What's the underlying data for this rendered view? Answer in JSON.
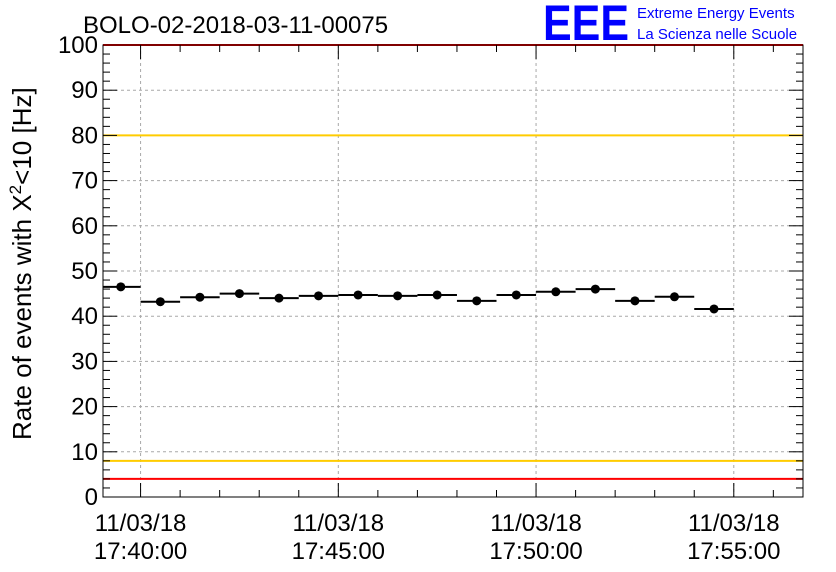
{
  "chart_data": {
    "type": "scatter",
    "title": "BOLO-02-2018-03-11-00075",
    "ylabel_main": "Rate of events with X",
    "ylabel_sup": "2",
    "ylabel_tail": "<10 [Hz]",
    "ylim": [
      0,
      100
    ],
    "y_ticks": [
      "0",
      "10",
      "20",
      "30",
      "40",
      "50",
      "60",
      "70",
      "80",
      "90",
      "100"
    ],
    "x_range_minutes": [
      -0.95,
      16.75
    ],
    "x_ticks": [
      {
        "minute": 0,
        "date": "11/03/18",
        "time": "17:40:00"
      },
      {
        "minute": 5,
        "date": "11/03/18",
        "time": "17:45:00"
      },
      {
        "minute": 10,
        "date": "11/03/18",
        "time": "17:50:00"
      },
      {
        "minute": 15,
        "date": "11/03/18",
        "time": "17:55:00"
      }
    ],
    "grid": true,
    "points": [
      {
        "x": -0.5,
        "y": 46.5
      },
      {
        "x": 0.5,
        "y": 43.2
      },
      {
        "x": 1.5,
        "y": 44.2
      },
      {
        "x": 2.5,
        "y": 45.0
      },
      {
        "x": 3.5,
        "y": 44.0
      },
      {
        "x": 4.5,
        "y": 44.5
      },
      {
        "x": 5.5,
        "y": 44.7
      },
      {
        "x": 6.5,
        "y": 44.5
      },
      {
        "x": 7.5,
        "y": 44.7
      },
      {
        "x": 8.5,
        "y": 43.4
      },
      {
        "x": 9.5,
        "y": 44.7
      },
      {
        "x": 10.5,
        "y": 45.4
      },
      {
        "x": 11.5,
        "y": 46.0
      },
      {
        "x": 12.5,
        "y": 43.4
      },
      {
        "x": 13.5,
        "y": 44.3
      },
      {
        "x": 14.5,
        "y": 41.6
      }
    ],
    "x_halfwidth": 0.5,
    "reference_lines": [
      {
        "y": 100,
        "color": "#ff0000"
      },
      {
        "y": 80,
        "color": "#ffcc00"
      },
      {
        "y": 8,
        "color": "#ffcc00"
      },
      {
        "y": 4,
        "color": "#ff0000"
      }
    ]
  },
  "logo": {
    "text": "EEE",
    "line1": "Extreme Energy Events",
    "line2": "La Scienza nelle Scuole",
    "color": "#0000ff"
  }
}
